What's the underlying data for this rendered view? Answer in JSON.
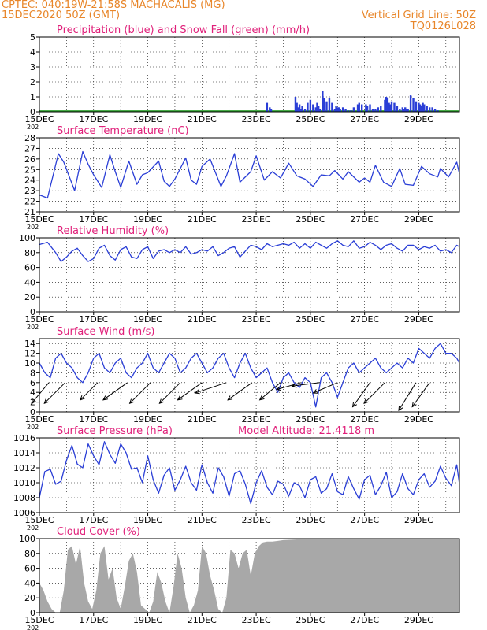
{
  "header": {
    "line1": "CPTEC:   040:19W-21:58S   MACHACALIS (MG)",
    "line2": "15DEC2020 50Z (GMT)",
    "grid_note": "Vertical Grid Line: 50Z",
    "code": "TQ0126L028",
    "color": "#e8862a"
  },
  "x_axis": {
    "ticks": [
      {
        "d": 0,
        "label": "15DEC"
      },
      {
        "d": 2,
        "label": "17DEC"
      },
      {
        "d": 4,
        "label": "19DEC"
      },
      {
        "d": 6,
        "label": "21DEC"
      },
      {
        "d": 8,
        "label": "23DEC"
      },
      {
        "d": 10,
        "label": "25DEC"
      },
      {
        "d": 12,
        "label": "27DEC"
      },
      {
        "d": 14,
        "label": "29DEC"
      }
    ],
    "year_stub": "202"
  },
  "colors": {
    "title": "#e0207a",
    "line": "#2a3ed6",
    "snow": "#2ea02e",
    "cloud": "#a8a8a8",
    "grid": "#000000"
  },
  "chart_data": [
    {
      "type": "bar",
      "title": "Precipitation (blue) and Snow Fall (green) (mm/h)",
      "ylim": [
        0,
        5
      ],
      "yticks": [
        0,
        1,
        2,
        3,
        4,
        5
      ],
      "x_unit": "days since 15DEC",
      "series": [
        {
          "name": "Precipitation",
          "x": [
            8.4,
            8.5,
            8.55,
            9.45,
            9.5,
            9.55,
            9.6,
            9.65,
            9.7,
            9.8,
            9.9,
            10.0,
            10.1,
            10.2,
            10.25,
            10.3,
            10.35,
            10.45,
            10.5,
            10.6,
            10.7,
            10.8,
            10.9,
            10.95,
            11.0,
            11.05,
            11.1,
            11.2,
            11.3,
            11.4,
            11.5,
            11.6,
            11.75,
            11.8,
            11.9,
            12.05,
            12.1,
            12.2,
            12.3,
            12.4,
            12.5,
            12.6,
            12.75,
            12.8,
            12.85,
            12.9,
            12.95,
            13.0,
            13.1,
            13.2,
            13.3,
            13.4,
            13.45,
            13.5,
            13.55,
            13.6,
            13.7,
            13.8,
            13.9,
            14.0,
            14.05,
            14.1,
            14.15,
            14.2,
            14.3,
            14.4,
            14.5,
            14.6,
            14.7,
            14.8
          ],
          "values": [
            0.6,
            0.3,
            0.2,
            1.0,
            0.6,
            0.3,
            0.5,
            0.2,
            0.4,
            0.2,
            0.6,
            0.8,
            0.5,
            0.3,
            0.6,
            0.4,
            0.2,
            1.4,
            0.9,
            0.7,
            0.9,
            0.6,
            0.2,
            0.4,
            0.3,
            0.3,
            0.2,
            0.3,
            0.2,
            0.1,
            0.1,
            0.3,
            0.5,
            0.6,
            0.5,
            0.5,
            0.4,
            0.5,
            0.2,
            0.2,
            0.3,
            0.4,
            0.8,
            1.0,
            0.9,
            0.6,
            0.5,
            0.7,
            0.6,
            0.4,
            0.2,
            0.3,
            0.2,
            0.3,
            0.2,
            0.2,
            1.1,
            0.9,
            0.7,
            0.6,
            0.5,
            0.4,
            0.6,
            0.5,
            0.4,
            0.3,
            0.3,
            0.2,
            0.1,
            0.0
          ]
        },
        {
          "name": "Snow Fall",
          "x": [
            0,
            15.5
          ],
          "values": [
            0.1,
            0.1
          ]
        }
      ]
    },
    {
      "type": "line",
      "title": "Surface Temperature (nC)",
      "ylim": [
        21,
        28
      ],
      "yticks": [
        21,
        22,
        23,
        24,
        25,
        26,
        27,
        28
      ],
      "x": [
        0,
        0.3,
        0.7,
        0.9,
        1.3,
        1.6,
        1.8,
        2.0,
        2.3,
        2.6,
        2.8,
        3.0,
        3.3,
        3.6,
        3.8,
        4.0,
        4.4,
        4.6,
        4.8,
        5.0,
        5.4,
        5.6,
        5.8,
        6.0,
        6.3,
        6.7,
        6.9,
        7.2,
        7.4,
        7.8,
        8.0,
        8.3,
        8.6,
        8.9,
        9.2,
        9.5,
        9.8,
        10.1,
        10.4,
        10.7,
        10.9,
        11.2,
        11.4,
        11.8,
        12.0,
        12.2,
        12.4,
        12.7,
        13.0,
        13.3,
        13.5,
        13.8,
        14.1,
        14.4,
        14.7,
        14.8,
        15.1,
        15.4,
        15.5
      ],
      "values": [
        22.6,
        22.3,
        26.5,
        25.7,
        23.0,
        26.7,
        25.5,
        24.5,
        23.3,
        26.4,
        24.8,
        23.3,
        25.8,
        23.6,
        24.5,
        24.7,
        25.8,
        23.9,
        23.4,
        24.1,
        26.1,
        24.0,
        23.6,
        25.3,
        26.0,
        23.4,
        24.4,
        26.5,
        23.8,
        24.8,
        26.3,
        24.0,
        24.8,
        24.2,
        25.6,
        24.4,
        24.1,
        23.4,
        24.5,
        24.4,
        24.9,
        24.1,
        24.8,
        23.8,
        24.2,
        23.8,
        25.4,
        23.8,
        23.4,
        25.1,
        23.6,
        23.5,
        25.3,
        24.6,
        24.3,
        25.1,
        24.3,
        25.7,
        24.6
      ]
    },
    {
      "type": "line",
      "title": "Relative Humidity (%)",
      "ylim": [
        0,
        100
      ],
      "yticks": [
        0,
        20,
        40,
        60,
        80,
        100
      ],
      "x": [
        0,
        0.3,
        0.6,
        0.8,
        1.0,
        1.2,
        1.4,
        1.6,
        1.8,
        2.0,
        2.2,
        2.4,
        2.6,
        2.8,
        3.0,
        3.2,
        3.4,
        3.6,
        3.8,
        4.0,
        4.2,
        4.4,
        4.6,
        4.8,
        5.0,
        5.2,
        5.4,
        5.6,
        5.8,
        6.0,
        6.2,
        6.4,
        6.6,
        6.8,
        7.0,
        7.2,
        7.4,
        7.6,
        7.8,
        8.0,
        8.2,
        8.4,
        8.6,
        8.8,
        9.0,
        9.2,
        9.4,
        9.6,
        9.8,
        10.0,
        10.2,
        10.4,
        10.6,
        10.8,
        11.0,
        11.2,
        11.4,
        11.6,
        11.8,
        12.0,
        12.2,
        12.4,
        12.6,
        12.8,
        13.0,
        13.2,
        13.4,
        13.6,
        13.8,
        14.0,
        14.2,
        14.4,
        14.6,
        14.8,
        15.0,
        15.2,
        15.4,
        15.5
      ],
      "values": [
        91,
        94,
        80,
        68,
        74,
        82,
        86,
        76,
        68,
        72,
        86,
        90,
        76,
        70,
        84,
        88,
        74,
        72,
        84,
        88,
        72,
        82,
        84,
        80,
        84,
        80,
        88,
        78,
        80,
        84,
        82,
        88,
        76,
        80,
        86,
        88,
        74,
        82,
        90,
        88,
        84,
        92,
        88,
        90,
        92,
        90,
        94,
        86,
        92,
        86,
        94,
        90,
        86,
        92,
        96,
        90,
        88,
        96,
        86,
        88,
        94,
        90,
        84,
        90,
        92,
        86,
        82,
        90,
        90,
        84,
        88,
        86,
        90,
        82,
        84,
        80,
        90,
        88
      ]
    },
    {
      "type": "line",
      "title": "Surface Wind (m/s)",
      "ylim": [
        0,
        15
      ],
      "yticks": [
        0,
        2,
        4,
        6,
        8,
        10,
        12,
        14
      ],
      "x": [
        0,
        0.2,
        0.4,
        0.6,
        0.8,
        1.0,
        1.2,
        1.4,
        1.6,
        1.8,
        2.0,
        2.2,
        2.4,
        2.6,
        2.8,
        3.0,
        3.2,
        3.4,
        3.6,
        3.8,
        4.0,
        4.2,
        4.4,
        4.6,
        4.8,
        5.0,
        5.2,
        5.4,
        5.6,
        5.8,
        6.0,
        6.2,
        6.4,
        6.6,
        6.8,
        7.0,
        7.2,
        7.4,
        7.6,
        7.8,
        8.0,
        8.2,
        8.4,
        8.6,
        8.8,
        9.0,
        9.2,
        9.4,
        9.6,
        9.8,
        10.0,
        10.2,
        10.4,
        10.6,
        10.8,
        11.0,
        11.2,
        11.4,
        11.6,
        11.8,
        12.0,
        12.2,
        12.4,
        12.6,
        12.8,
        13.0,
        13.2,
        13.4,
        13.6,
        13.8,
        14.0,
        14.2,
        14.4,
        14.6,
        14.8,
        15.0,
        15.2,
        15.4,
        15.5
      ],
      "values": [
        10,
        8,
        7,
        11,
        12,
        10,
        9,
        7,
        6,
        8,
        11,
        12,
        9,
        8,
        10,
        11,
        8,
        7,
        9,
        10,
        12,
        9,
        8,
        10,
        12,
        11,
        8,
        9,
        11,
        12,
        10,
        8,
        9,
        11,
        12,
        9,
        7,
        10,
        12,
        9,
        7,
        8,
        9,
        6,
        4,
        7,
        8,
        6,
        5,
        7,
        6,
        1,
        7,
        8,
        6,
        3,
        6,
        9,
        10,
        8,
        9,
        10,
        11,
        9,
        8,
        9,
        10,
        9,
        11,
        10,
        13,
        12,
        11,
        13,
        14,
        12,
        12,
        11,
        10
      ]
    },
    {
      "type": "line",
      "title": "Surface Pressure (hPa)",
      "annotation": "Model Altitude: 21.4118 m",
      "ylim": [
        1006,
        1016
      ],
      "yticks": [
        1006,
        1008,
        1010,
        1012,
        1014,
        1016
      ],
      "x": [
        0,
        0.2,
        0.4,
        0.6,
        0.8,
        1.0,
        1.2,
        1.4,
        1.6,
        1.8,
        2.0,
        2.2,
        2.4,
        2.6,
        2.8,
        3.0,
        3.2,
        3.4,
        3.6,
        3.8,
        4.0,
        4.2,
        4.4,
        4.6,
        4.8,
        5.0,
        5.2,
        5.4,
        5.6,
        5.8,
        6.0,
        6.2,
        6.4,
        6.6,
        6.8,
        7.0,
        7.2,
        7.4,
        7.6,
        7.8,
        8.0,
        8.2,
        8.4,
        8.6,
        8.8,
        9.0,
        9.2,
        9.4,
        9.6,
        9.8,
        10.0,
        10.2,
        10.4,
        10.6,
        10.8,
        11.0,
        11.2,
        11.4,
        11.6,
        11.8,
        12.0,
        12.2,
        12.4,
        12.6,
        12.8,
        13.0,
        13.2,
        13.4,
        13.6,
        13.8,
        14.0,
        14.2,
        14.4,
        14.6,
        14.8,
        15.0,
        15.2,
        15.4,
        15.5
      ],
      "values": [
        1008,
        1011.5,
        1011.8,
        1009.8,
        1010.2,
        1013,
        1015,
        1012.5,
        1012,
        1015.2,
        1013.6,
        1012.4,
        1015.5,
        1013.8,
        1012.6,
        1015.2,
        1014,
        1011.8,
        1012,
        1010,
        1013.6,
        1010.4,
        1008.6,
        1011,
        1012,
        1009,
        1010.4,
        1012.2,
        1010,
        1009,
        1012.4,
        1010,
        1008.6,
        1012,
        1010.8,
        1008.2,
        1011.2,
        1011.6,
        1009.8,
        1007.2,
        1010,
        1011.6,
        1009.4,
        1008.4,
        1010.2,
        1009.8,
        1008.2,
        1010,
        1009.6,
        1008,
        1010.4,
        1010.8,
        1008.6,
        1009.2,
        1011.2,
        1008.8,
        1008.4,
        1010.8,
        1009.2,
        1007.8,
        1010.4,
        1011,
        1008.4,
        1009.6,
        1011.4,
        1008,
        1008.8,
        1011.2,
        1009.2,
        1008.4,
        1010.4,
        1011.2,
        1009.4,
        1010.2,
        1012.2,
        1010.6,
        1009.6,
        1012.4,
        1009.8
      ]
    },
    {
      "type": "area",
      "title": "Cloud Cover (%)",
      "ylim": [
        0,
        100
      ],
      "yticks": [
        0,
        20,
        40,
        60,
        80,
        100
      ],
      "x": [
        0,
        0.15,
        0.3,
        0.45,
        0.6,
        0.75,
        0.9,
        1.05,
        1.2,
        1.35,
        1.5,
        1.65,
        1.8,
        1.95,
        2.1,
        2.25,
        2.4,
        2.55,
        2.7,
        2.85,
        3.0,
        3.15,
        3.3,
        3.45,
        3.6,
        3.75,
        3.9,
        4.05,
        4.2,
        4.35,
        4.5,
        4.65,
        4.8,
        4.95,
        5.1,
        5.25,
        5.4,
        5.55,
        5.7,
        5.85,
        6.0,
        6.15,
        6.3,
        6.45,
        6.6,
        6.75,
        6.9,
        7.05,
        7.2,
        7.35,
        7.5,
        7.65,
        7.8,
        7.95,
        8.1,
        8.25,
        8.4,
        8.6,
        8.8,
        9.0,
        9.5,
        10.0,
        11.0,
        12.0,
        13.0,
        14.0,
        15.0,
        15.5
      ],
      "values": [
        40,
        30,
        15,
        5,
        0,
        0,
        30,
        85,
        90,
        65,
        90,
        40,
        15,
        5,
        30,
        80,
        90,
        45,
        60,
        20,
        5,
        35,
        70,
        80,
        55,
        10,
        5,
        0,
        15,
        55,
        40,
        15,
        0,
        35,
        80,
        60,
        20,
        0,
        10,
        30,
        90,
        80,
        50,
        30,
        5,
        0,
        20,
        85,
        80,
        60,
        80,
        85,
        50,
        80,
        90,
        95,
        96,
        96,
        97,
        98,
        99,
        100,
        99,
        99,
        100,
        99,
        99,
        99
      ]
    }
  ],
  "wind_vectors": {
    "x": [
      0.35,
      0.95,
      2.15,
      3.25,
      4.1,
      5.2,
      6.0,
      6.9,
      7.85,
      8.9,
      9.65,
      10.35,
      11.0,
      12.2,
      12.75,
      13.9,
      14.4
    ],
    "u": [
      0.5,
      0.6,
      0.5,
      0.7,
      0.6,
      0.6,
      0.7,
      0.9,
      0.7,
      0.6,
      0.7,
      0.8,
      0.7,
      0.5,
      0.6,
      0.5,
      0.5
    ],
    "v": [
      -0.6,
      -0.6,
      -0.5,
      -0.5,
      -0.6,
      -0.6,
      -0.5,
      -0.3,
      -0.5,
      -0.5,
      -0.2,
      -0.1,
      -0.3,
      -0.7,
      -0.6,
      -0.8,
      -0.7
    ],
    "y_level": 6
  }
}
